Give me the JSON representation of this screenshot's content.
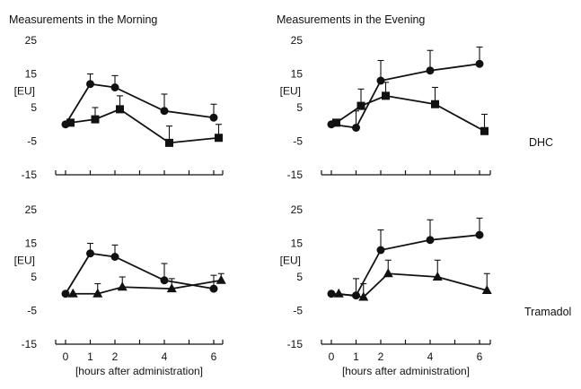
{
  "chart_data": [
    {
      "type": "line",
      "title": "Measurements in the Morning",
      "row_label": "",
      "ylabel": "[EU]",
      "xlabel": "",
      "yticks": [
        "25",
        "15",
        "5",
        "-5",
        "-15"
      ],
      "ylim": [
        -15,
        25
      ],
      "xlim": [
        -0.3,
        6.6
      ],
      "error_bars": "upward only",
      "series": [
        {
          "marker": "circle",
          "x": [
            0,
            1,
            2,
            4,
            6
          ],
          "y": [
            0,
            12,
            11,
            4,
            2
          ],
          "err": [
            0,
            3,
            3.5,
            5,
            4
          ]
        },
        {
          "marker": "square",
          "x": [
            0.2,
            1.2,
            2.2,
            4.2,
            6.2
          ],
          "y": [
            0.5,
            1.5,
            4.5,
            -5.5,
            -4
          ],
          "err": [
            0,
            3.5,
            4,
            5,
            4
          ]
        }
      ]
    },
    {
      "type": "line",
      "title": "Measurements in the Evening",
      "row_label": "DHC",
      "ylabel": "[EU]",
      "xlabel": "",
      "yticks": [
        "25",
        "15",
        "5",
        "-5",
        "-15"
      ],
      "ylim": [
        -15,
        25
      ],
      "xlim": [
        -0.3,
        6.6
      ],
      "error_bars": "upward only",
      "series": [
        {
          "marker": "circle",
          "x": [
            0,
            1,
            2,
            4,
            6
          ],
          "y": [
            0,
            -1,
            13,
            16,
            18
          ],
          "err": [
            0,
            5,
            6,
            6,
            5
          ]
        },
        {
          "marker": "square",
          "x": [
            0.2,
            1.2,
            2.2,
            4.2,
            6.2
          ],
          "y": [
            0.5,
            5.5,
            8.5,
            6,
            -2
          ],
          "err": [
            0,
            5,
            4,
            5,
            5
          ]
        }
      ]
    },
    {
      "type": "line",
      "title": "",
      "row_label": "",
      "ylabel": "[EU]",
      "xlabel": "[hours after administration]",
      "xticks": [
        "0",
        "1",
        "2",
        "4",
        "6"
      ],
      "yticks": [
        "25",
        "15",
        "5",
        "-5",
        "-15"
      ],
      "ylim": [
        -15,
        25
      ],
      "xlim": [
        -0.3,
        6.6
      ],
      "error_bars": "upward only",
      "series": [
        {
          "marker": "circle",
          "x": [
            0,
            1,
            2,
            4,
            6
          ],
          "y": [
            0,
            12,
            11,
            4,
            1.5
          ],
          "err": [
            0,
            3,
            3.5,
            5,
            4
          ]
        },
        {
          "marker": "triangle",
          "x": [
            0.3,
            1.3,
            2.3,
            4.3,
            6.3
          ],
          "y": [
            0,
            0,
            2,
            1.5,
            4
          ],
          "err": [
            0,
            3,
            3,
            3,
            2
          ]
        }
      ]
    },
    {
      "type": "line",
      "title": "",
      "row_label": "Tramadol",
      "ylabel": "[EU]",
      "xlabel": "[hours after administration]",
      "xticks": [
        "0",
        "1",
        "2",
        "4",
        "6"
      ],
      "yticks": [
        "25",
        "15",
        "5",
        "-5",
        "-15"
      ],
      "ylim": [
        -15,
        25
      ],
      "xlim": [
        -0.3,
        6.6
      ],
      "error_bars": "upward only",
      "series": [
        {
          "marker": "circle",
          "x": [
            0,
            1,
            2,
            4,
            6
          ],
          "y": [
            0,
            -0.5,
            13,
            16,
            17.5
          ],
          "err": [
            0,
            5,
            6,
            6,
            5
          ]
        },
        {
          "marker": "triangle",
          "x": [
            0.3,
            1.3,
            2.3,
            4.3,
            6.3
          ],
          "y": [
            0,
            -1,
            6,
            5,
            1
          ],
          "err": [
            0,
            4,
            4,
            5,
            5
          ]
        }
      ]
    }
  ]
}
